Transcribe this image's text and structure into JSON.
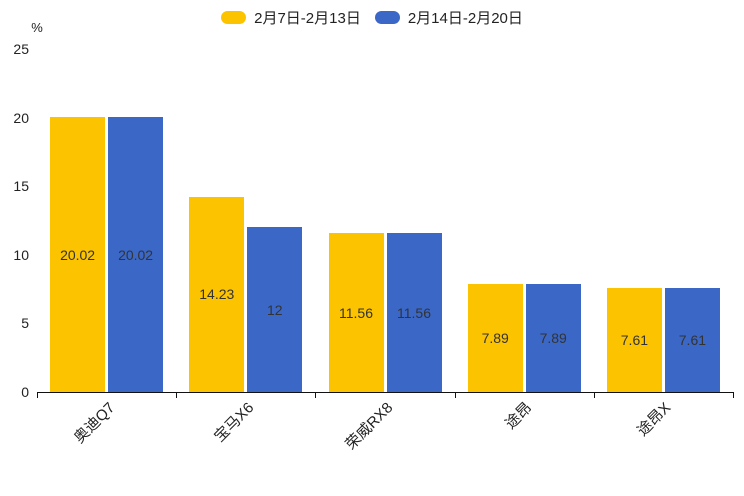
{
  "chart_data": {
    "type": "bar",
    "title": "",
    "unit_label": "%",
    "categories": [
      "奥迪Q7",
      "宝马X6",
      "荣威RX8",
      "途昂",
      "途昂X"
    ],
    "series": [
      {
        "name": "2月7日-2月13日",
        "color": "#FCC400",
        "values": [
          20.02,
          14.23,
          11.56,
          7.89,
          7.61
        ],
        "labels": [
          "20.02",
          "14.23",
          "11.56",
          "7.89",
          "7.61"
        ]
      },
      {
        "name": "2月14日-2月20日",
        "color": "#3B68C7",
        "values": [
          20.02,
          12,
          11.56,
          7.89,
          7.61
        ],
        "labels": [
          "20.02",
          "12",
          "11.56",
          "7.89",
          "7.61"
        ]
      }
    ],
    "yticks": [
      0,
      5,
      10,
      15,
      20,
      25
    ],
    "ylim": [
      0,
      25
    ],
    "legend_position": "top-center",
    "grid": false,
    "bar_value_labels_inside": true,
    "axis_color": "#111111",
    "text_color": "#222222",
    "value_label_color": "#333333",
    "background_color": "#ffffff"
  }
}
